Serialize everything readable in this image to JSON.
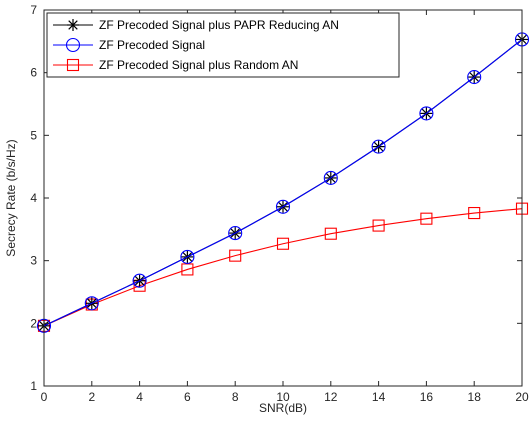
{
  "chart_data": {
    "type": "line",
    "xlabel": "SNR(dB)",
    "ylabel": "Secrecy Rate (b/s/Hz)",
    "xlim": [
      0,
      20
    ],
    "ylim": [
      1,
      7
    ],
    "xticks": [
      0,
      2,
      4,
      6,
      8,
      10,
      12,
      14,
      16,
      18,
      20
    ],
    "yticks": [
      1,
      2,
      3,
      4,
      5,
      6,
      7
    ],
    "grid": false,
    "legend_position": "top-left",
    "x": [
      0,
      2,
      4,
      6,
      8,
      10,
      12,
      14,
      16,
      18,
      20
    ],
    "series": [
      {
        "name": "ZF Precoded Signal plus PAPR Reducing AN",
        "color": "#000000",
        "marker": "asterisk",
        "values": [
          1.96,
          2.32,
          2.68,
          3.06,
          3.44,
          3.86,
          4.32,
          4.82,
          5.35,
          5.93,
          6.53
        ]
      },
      {
        "name": "ZF Precoded Signal",
        "color": "#0000ff",
        "marker": "circle",
        "values": [
          1.96,
          2.32,
          2.68,
          3.06,
          3.44,
          3.86,
          4.32,
          4.82,
          5.35,
          5.93,
          6.53
        ]
      },
      {
        "name": "ZF Precoded Signal plus Random AN",
        "color": "#ff0000",
        "marker": "square",
        "values": [
          1.96,
          2.3,
          2.6,
          2.86,
          3.08,
          3.27,
          3.43,
          3.56,
          3.67,
          3.76,
          3.83
        ]
      }
    ]
  }
}
